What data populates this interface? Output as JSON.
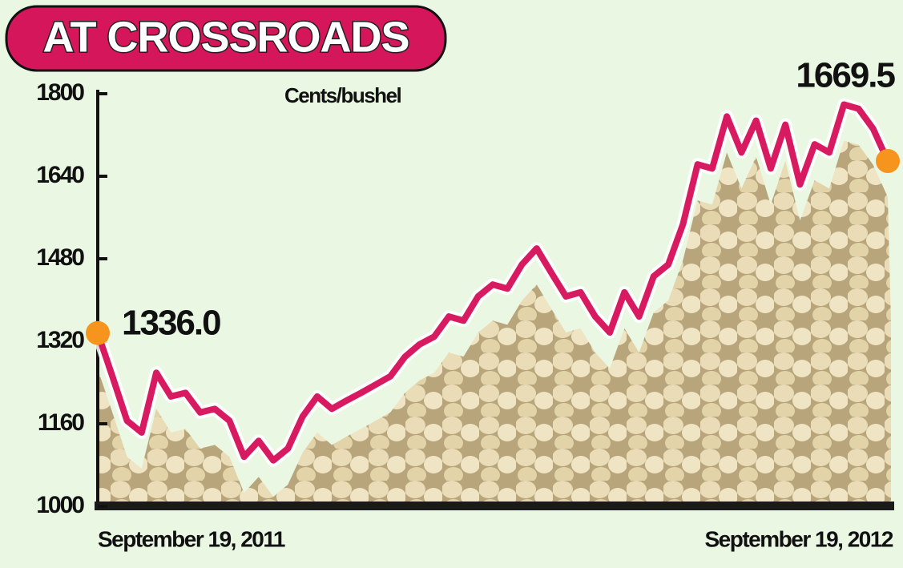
{
  "chart_data": {
    "type": "line",
    "title": "AT CROSSROADS",
    "y_label": "Cents/bushel",
    "categories": [
      "September 19, 2011",
      null,
      null,
      null,
      null,
      null,
      null,
      null,
      null,
      null,
      null,
      null,
      null,
      null,
      null,
      null,
      null,
      null,
      null,
      null,
      null,
      null,
      null,
      null,
      null,
      null,
      null,
      null,
      null,
      null,
      null,
      null,
      null,
      null,
      null,
      null,
      null,
      null,
      null,
      null,
      null,
      null,
      null,
      null,
      null,
      null,
      null,
      null,
      null,
      null,
      null,
      null,
      null,
      null,
      "September 19, 2012"
    ],
    "values": [
      1336,
      1252,
      1166,
      1143,
      1259,
      1213,
      1220,
      1182,
      1189,
      1166,
      1096,
      1127,
      1089,
      1112,
      1174,
      1213,
      1189,
      1205,
      1220,
      1236,
      1252,
      1290,
      1314,
      1329,
      1368,
      1360,
      1407,
      1430,
      1422,
      1469,
      1500,
      1453,
      1407,
      1415,
      1368,
      1337,
      1415,
      1368,
      1446,
      1469,
      1547,
      1663,
      1655,
      1756,
      1686,
      1748,
      1655,
      1740,
      1624,
      1702,
      1686,
      1779,
      1771,
      1732,
      1669.5
    ],
    "value_labels": [
      "1336.0",
      null,
      null,
      null,
      null,
      null,
      null,
      null,
      null,
      null,
      null,
      null,
      null,
      null,
      null,
      null,
      null,
      null,
      null,
      null,
      null,
      null,
      null,
      null,
      null,
      null,
      null,
      null,
      null,
      null,
      null,
      null,
      null,
      null,
      null,
      null,
      null,
      null,
      null,
      null,
      null,
      null,
      null,
      null,
      null,
      null,
      null,
      null,
      null,
      null,
      null,
      null,
      null,
      null,
      "1669.5"
    ],
    "color": "#d81b60",
    "marker_color": "#f7941d",
    "ylim": [
      1000,
      1800
    ],
    "yticks": [
      1000,
      1160,
      1320,
      1480,
      1640,
      1800
    ],
    "grid": false
  }
}
